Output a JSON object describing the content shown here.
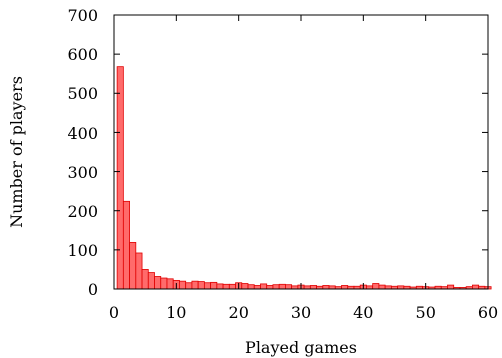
{
  "chart_data": {
    "type": "bar",
    "xlabel": "Played games",
    "ylabel": "Number of players",
    "xlim": [
      0,
      60
    ],
    "ylim": [
      0,
      700
    ],
    "xticks": [
      "0",
      "10",
      "20",
      "30",
      "40",
      "50",
      "60"
    ],
    "yticks": [
      "0",
      "100",
      "200",
      "300",
      "400",
      "500",
      "600",
      "700"
    ],
    "bin_width": 1,
    "bin_start": 0.5,
    "values": [
      568,
      224,
      119,
      92,
      50,
      42,
      32,
      28,
      26,
      22,
      20,
      16,
      20,
      19,
      16,
      17,
      13,
      12,
      12,
      16,
      14,
      11,
      9,
      13,
      9,
      11,
      12,
      11,
      8,
      10,
      8,
      9,
      7,
      9,
      8,
      6,
      9,
      7,
      7,
      10,
      8,
      14,
      10,
      8,
      7,
      8,
      7,
      5,
      7,
      6,
      5,
      7,
      6,
      10,
      4,
      4,
      6,
      10,
      7,
      6
    ],
    "bar_fill": "#ff6b6b",
    "bar_stroke": "#e00000",
    "grid": false,
    "legend": "none"
  }
}
